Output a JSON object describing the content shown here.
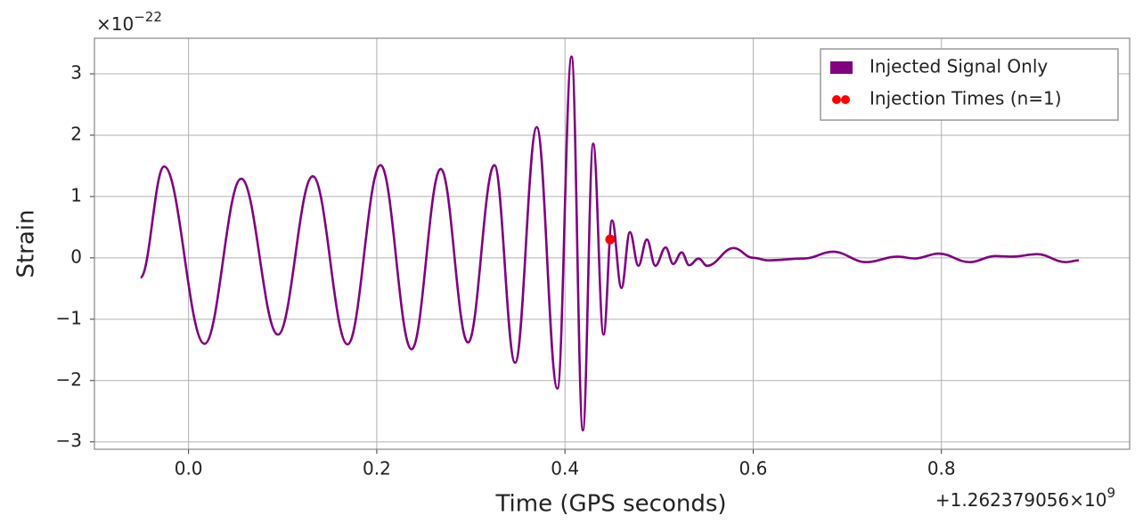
{
  "chart_data": {
    "type": "line",
    "xlabel": "Time (GPS seconds)",
    "ylabel": "Strain",
    "x_offset_text": {
      "base": "+1.262379056×10",
      "exponent": "9"
    },
    "y_offset_text": {
      "base": "×10",
      "exponent": "−22"
    },
    "xlim": [
      -0.1,
      1.0
    ],
    "ylim": [
      -3.12,
      3.58
    ],
    "xticks": [
      {
        "value": 0,
        "label": "0.0"
      },
      0.2,
      0.4,
      0.6,
      0.8
    ],
    "yticks": [
      {
        "value": -3,
        "label": "−3"
      },
      {
        "value": -2,
        "label": "−2"
      },
      {
        "value": -1,
        "label": "−1"
      },
      0,
      1,
      2,
      3
    ],
    "grid": true,
    "legend": "upper right",
    "series": [
      {
        "name": "Injected Signal Only",
        "color": "#800080",
        "x": [
          -0.051,
          -0.026,
          0.017,
          0.056,
          0.095,
          0.132,
          0.169,
          0.204,
          0.237,
          0.268,
          0.297,
          0.325,
          0.347,
          0.37,
          0.392,
          0.407,
          0.419,
          0.43,
          0.441,
          0.45,
          0.46,
          0.469,
          0.478,
          0.487,
          0.496,
          0.507,
          0.515,
          0.524,
          0.532,
          0.542,
          0.551,
          0.579,
          0.6,
          0.616,
          0.654,
          0.685,
          0.72,
          0.753,
          0.772,
          0.797,
          0.83,
          0.857,
          0.875,
          0.902,
          0.932,
          0.946
        ],
        "values": [
          -0.32,
          1.49,
          -1.4,
          1.29,
          -1.25,
          1.33,
          -1.41,
          1.51,
          -1.49,
          1.45,
          -1.38,
          1.51,
          -1.71,
          2.13,
          -2.13,
          3.28,
          -2.81,
          1.86,
          -1.25,
          0.61,
          -0.49,
          0.42,
          -0.13,
          0.3,
          -0.13,
          0.17,
          -0.1,
          0.09,
          -0.12,
          -0.01,
          -0.13,
          0.16,
          0,
          -0.04,
          -0.01,
          0.1,
          -0.07,
          0.02,
          -0.01,
          0.07,
          -0.07,
          0.03,
          0.02,
          0.06,
          -0.07,
          -0.04
        ]
      },
      {
        "name": "Injection Times (n=1)",
        "color": "#ff0000",
        "type": "scatter",
        "x": [
          0.448
        ],
        "values": [
          0.3
        ]
      }
    ]
  }
}
